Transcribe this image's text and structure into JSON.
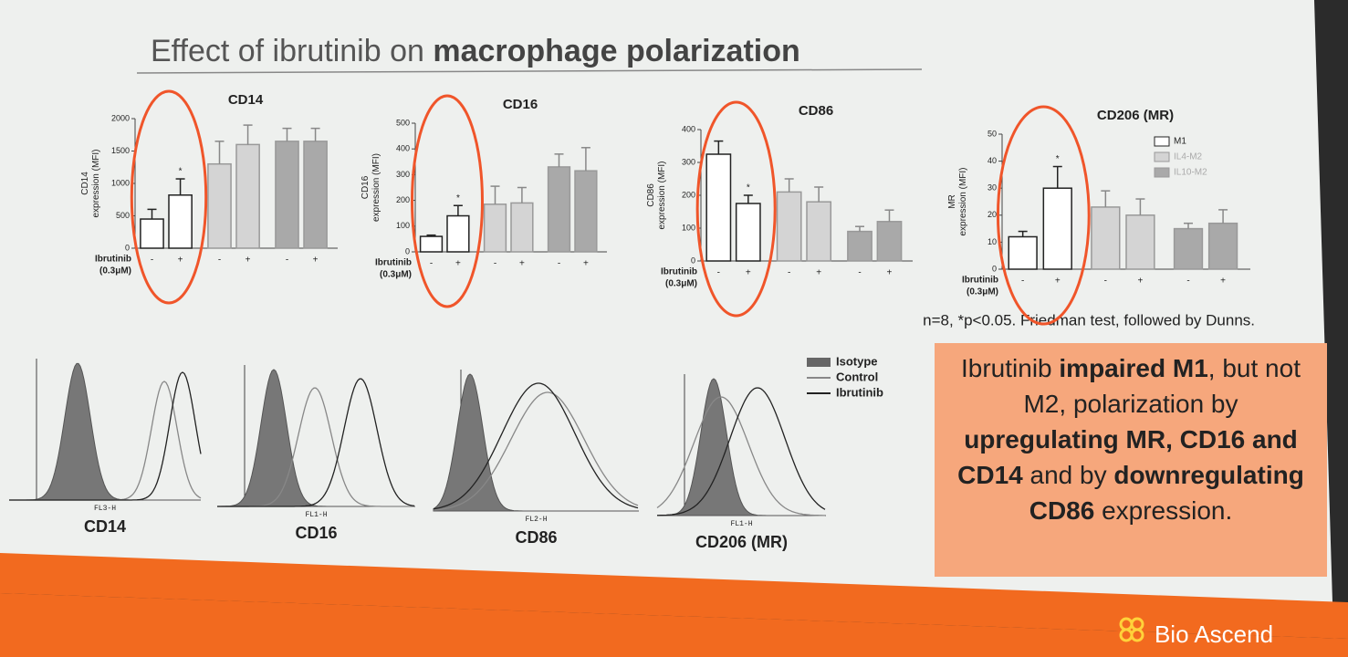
{
  "slide_title": [
    "Effect of ibrutinib on ",
    "macrophage polarization"
  ],
  "chart_data": [
    {
      "type": "bar",
      "title": "CD14",
      "ylabel": [
        "CD14",
        "expression (MFI)"
      ],
      "xlabel": [
        "Ibrutinib",
        "(0.3μM)"
      ],
      "categories": [
        "-",
        "+"
      ],
      "ylim": [
        0,
        2000
      ],
      "yticks": [
        0,
        500,
        1000,
        1500,
        2000
      ],
      "annotation": "*",
      "series": [
        {
          "color": "#ffffff",
          "values": [
            450,
            820
          ],
          "errors": [
            150,
            250
          ]
        },
        {
          "color": "#d4d4d4",
          "values": [
            1300,
            1600
          ],
          "errors": [
            350,
            300
          ]
        },
        {
          "color": "#a9a9a9",
          "values": [
            1650,
            1650
          ],
          "errors": [
            200,
            200
          ]
        }
      ]
    },
    {
      "type": "bar",
      "title": "CD16",
      "ylabel": [
        "CD16",
        "expression (MFI)"
      ],
      "xlabel": [
        "Ibrutinib",
        "(0.3μM)"
      ],
      "categories": [
        "-",
        "+"
      ],
      "ylim": [
        0,
        500
      ],
      "yticks": [
        0,
        100,
        200,
        300,
        400,
        500
      ],
      "annotation": "*",
      "series": [
        {
          "color": "#ffffff",
          "values": [
            60,
            140
          ],
          "errors": [
            5,
            40
          ]
        },
        {
          "color": "#d4d4d4",
          "values": [
            185,
            190
          ],
          "errors": [
            70,
            60
          ]
        },
        {
          "color": "#a9a9a9",
          "values": [
            330,
            315
          ],
          "errors": [
            50,
            90
          ]
        }
      ]
    },
    {
      "type": "bar",
      "title": "CD86",
      "ylabel": [
        "CD86",
        "expression (MFI)"
      ],
      "xlabel": [
        "Ibrutinib",
        "(0.3μM)"
      ],
      "categories": [
        "-",
        "+"
      ],
      "ylim": [
        0,
        400
      ],
      "yticks": [
        0,
        100,
        200,
        300,
        400
      ],
      "annotation": "*",
      "series": [
        {
          "color": "#ffffff",
          "values": [
            325,
            175
          ],
          "errors": [
            40,
            25
          ]
        },
        {
          "color": "#d4d4d4",
          "values": [
            210,
            180
          ],
          "errors": [
            40,
            45
          ]
        },
        {
          "color": "#a9a9a9",
          "values": [
            90,
            120
          ],
          "errors": [
            15,
            35
          ]
        }
      ]
    },
    {
      "type": "bar",
      "title": "CD206 (MR)",
      "ylabel": [
        "MR",
        "expression (MFI)"
      ],
      "xlabel": [
        "Ibrutinib",
        "(0.3μM)"
      ],
      "categories": [
        "-",
        "+"
      ],
      "ylim": [
        0,
        50
      ],
      "yticks": [
        0,
        10,
        20,
        30,
        40,
        50
      ],
      "annotation": "*",
      "series": [
        {
          "name": "M1",
          "color": "#ffffff",
          "values": [
            12,
            30
          ],
          "errors": [
            2,
            8
          ]
        },
        {
          "name": "IL4-M2",
          "color": "#d4d4d4",
          "values": [
            23,
            20
          ],
          "errors": [
            6,
            6
          ]
        },
        {
          "name": "IL10-M2",
          "color": "#a9a9a9",
          "values": [
            15,
            17
          ],
          "errors": [
            2,
            5
          ]
        }
      ]
    }
  ],
  "footnote": "n=8, *p<0.05. Friedman test, followed by Dunns.",
  "histograms": [
    {
      "label": "CD14",
      "axis": "FL3-H"
    },
    {
      "label": "CD16",
      "axis": "FL1-H"
    },
    {
      "label": "CD86",
      "axis": "FL2-H"
    },
    {
      "label": "CD206 (MR)",
      "axis": "FL1-H"
    }
  ],
  "histogram_legend": [
    "Isotype",
    "Control",
    "Ibrutinib"
  ],
  "conclusion": [
    "Ibrutinib ",
    "impaired M1",
    ", but not M2, polarization by ",
    "upregulating MR, CD16 and CD14",
    " and by ",
    "downregulating CD86",
    " expression."
  ],
  "logo": "Bio Ascend"
}
